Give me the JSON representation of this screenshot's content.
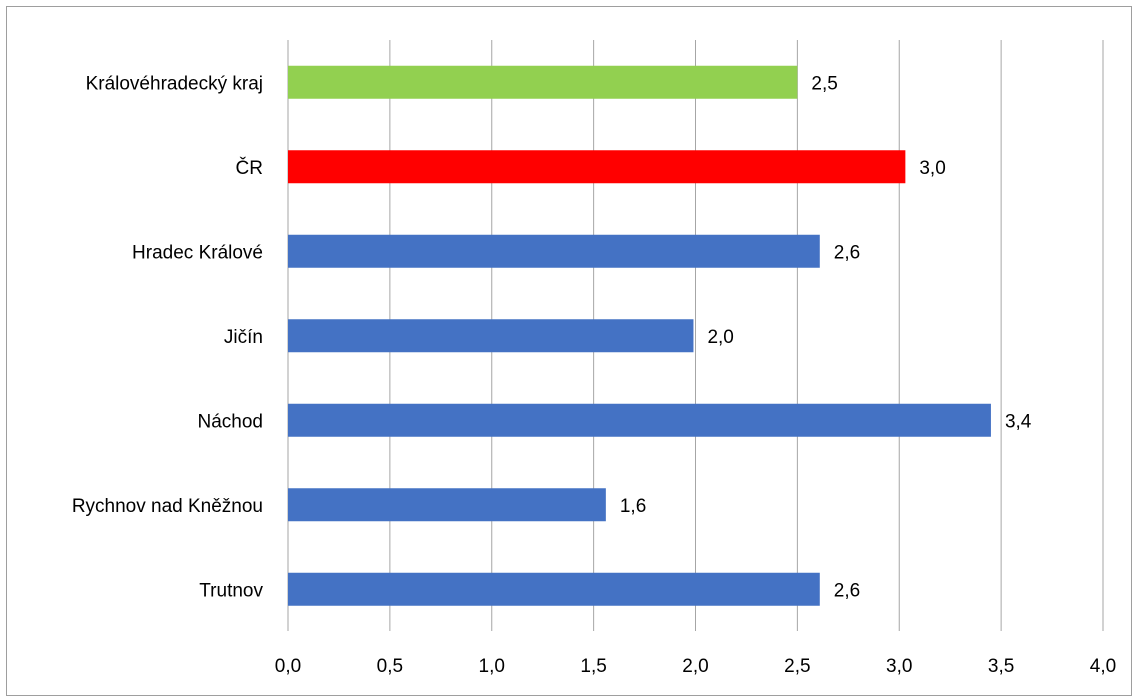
{
  "chart_data": {
    "type": "bar",
    "orientation": "horizontal",
    "title": "",
    "xlabel": "",
    "ylabel": "",
    "xlim": [
      0,
      4
    ],
    "x_ticks": [
      "0,0",
      "0,5",
      "1,0",
      "1,5",
      "2,0",
      "2,5",
      "3,0",
      "3,5",
      "4,0"
    ],
    "grid": "vertical",
    "legend": "none",
    "categories": [
      "Královéhradecký kraj",
      "ČR",
      "Hradec Králové",
      "Jičín",
      "Náchod",
      "Rychnov nad Kněžnou",
      "Trutnov"
    ],
    "values": [
      2.5,
      3.03,
      2.61,
      1.99,
      3.45,
      1.56,
      2.61
    ],
    "value_labels": [
      "2,5",
      "3,0",
      "2,6",
      "2,0",
      "3,4",
      "1,6",
      "2,6"
    ],
    "colors": [
      "#92d050",
      "#ff0000",
      "#4472c4",
      "#4472c4",
      "#4472c4",
      "#4472c4",
      "#4472c4"
    ]
  },
  "colors": {
    "gridline": "#a6a6a6",
    "frame": "#9e9e9e"
  }
}
